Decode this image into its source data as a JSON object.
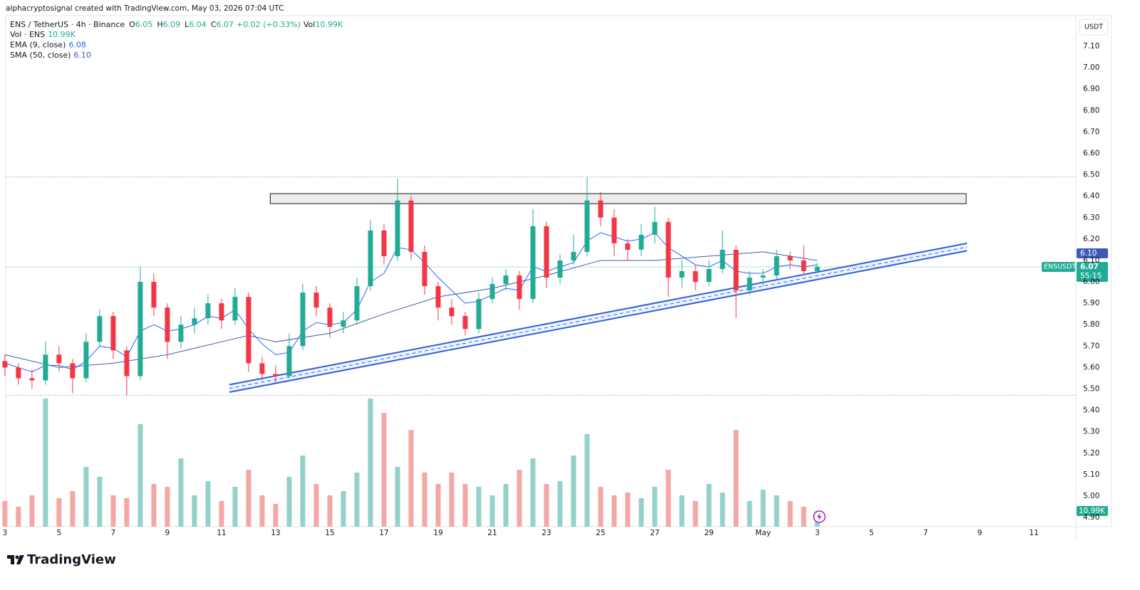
{
  "attribution": "alphacryptosignal created with TradingView.com, May 03, 2026 07:04 UTC",
  "brand": "TradingView",
  "chart_data": {
    "type": "candlestick",
    "title": "ENS / TetherUS · 4h · Binance",
    "status": [
      {
        "label": "O",
        "value": "6.05"
      },
      {
        "label": "H",
        "value": "6.09"
      },
      {
        "label": "L",
        "value": "6.04"
      },
      {
        "label": "C",
        "value": "6.07"
      }
    ],
    "change": "+0.02 (+0.33%)",
    "vol_status": {
      "label": "Vol",
      "value": "10.99K"
    },
    "indicators": [
      {
        "name": "Vol · ENS",
        "value_label": "10.99K"
      },
      {
        "name": "EMA (9, close)",
        "value_label": "6.08"
      },
      {
        "name": "SMA (50, close)",
        "value_label": "6.10"
      }
    ],
    "symbol": "ENSUSDT",
    "countdown": "55:15",
    "currency": "USDT",
    "up_color": "#22ab94",
    "down_color": "#f23645",
    "up_volume_color": "#93d2cb",
    "down_volume_color": "#f5a7a6",
    "x": [
      3,
      3.5,
      4,
      4.5,
      5,
      5.5,
      6,
      6.5,
      7,
      7.5,
      8,
      8.5,
      9,
      9.5,
      10,
      10.5,
      11,
      11.5,
      12,
      12.5,
      13,
      13.5,
      14,
      14.5,
      15,
      15.5,
      16,
      16.5,
      17,
      17.5,
      18,
      18.5,
      19,
      19.5,
      20,
      20.5,
      21,
      21.5,
      22,
      22.5,
      23,
      23.5,
      24,
      24.5,
      25,
      25.5,
      26,
      26.5,
      27,
      27.5,
      28,
      28.5,
      29,
      29.5,
      30,
      30.5,
      31,
      31.5,
      32,
      32.5,
      33
    ],
    "open": [
      5.63,
      5.6,
      5.55,
      5.54,
      5.66,
      5.62,
      5.55,
      5.72,
      5.84,
      5.68,
      5.56,
      6.0,
      5.88,
      5.72,
      5.8,
      5.83,
      5.9,
      5.82,
      5.93,
      5.62,
      5.57,
      5.56,
      5.7,
      5.95,
      5.88,
      5.79,
      5.82,
      5.98,
      6.24,
      6.12,
      6.38,
      6.14,
      5.98,
      5.88,
      5.84,
      5.78,
      5.92,
      5.99,
      6.03,
      5.92,
      6.26,
      6.02,
      6.1,
      6.14,
      6.38,
      6.3,
      6.18,
      6.15,
      6.22,
      6.28,
      6.02,
      6.05,
      6.0,
      6.06,
      6.15,
      5.96,
      6.02,
      6.03,
      6.12,
      6.1,
      6.05
    ],
    "high": [
      5.66,
      5.62,
      5.59,
      5.72,
      5.7,
      5.64,
      5.76,
      5.87,
      5.86,
      5.7,
      6.07,
      6.04,
      5.9,
      5.84,
      5.88,
      5.94,
      5.92,
      5.97,
      5.95,
      5.65,
      5.61,
      5.76,
      5.99,
      5.98,
      5.9,
      5.86,
      6.02,
      6.29,
      6.27,
      6.48,
      6.4,
      6.17,
      6.0,
      5.92,
      5.86,
      5.95,
      6.02,
      6.06,
      6.05,
      6.34,
      6.28,
      6.13,
      6.22,
      6.49,
      6.42,
      6.34,
      6.2,
      6.27,
      6.35,
      6.3,
      6.1,
      6.08,
      6.1,
      6.24,
      6.17,
      6.05,
      6.06,
      6.15,
      6.14,
      6.17,
      6.09
    ],
    "low": [
      5.56,
      5.52,
      5.5,
      5.52,
      5.58,
      5.48,
      5.53,
      5.7,
      5.64,
      5.47,
      5.54,
      5.84,
      5.64,
      5.69,
      5.76,
      5.8,
      5.78,
      5.8,
      5.58,
      5.54,
      5.53,
      5.55,
      5.68,
      5.84,
      5.74,
      5.76,
      5.8,
      5.96,
      6.08,
      6.1,
      6.1,
      5.94,
      5.82,
      5.8,
      5.75,
      5.76,
      5.9,
      5.96,
      5.87,
      5.9,
      5.97,
      5.99,
      6.08,
      6.12,
      6.26,
      6.12,
      6.1,
      6.12,
      6.18,
      5.93,
      5.97,
      5.96,
      5.98,
      6.04,
      5.83,
      5.94,
      5.98,
      6.01,
      6.06,
      6.03,
      6.04
    ],
    "close": [
      5.6,
      5.55,
      5.54,
      5.66,
      5.62,
      5.55,
      5.72,
      5.84,
      5.68,
      5.56,
      6.0,
      5.88,
      5.72,
      5.8,
      5.83,
      5.9,
      5.82,
      5.93,
      5.62,
      5.57,
      5.56,
      5.7,
      5.95,
      5.88,
      5.79,
      5.82,
      5.98,
      6.24,
      6.12,
      6.38,
      6.14,
      5.98,
      5.88,
      5.84,
      5.78,
      5.92,
      5.99,
      6.03,
      5.92,
      6.26,
      6.02,
      6.1,
      6.14,
      6.38,
      6.3,
      6.18,
      6.15,
      6.22,
      6.28,
      6.02,
      6.05,
      6.0,
      6.06,
      6.15,
      5.96,
      6.02,
      6.03,
      6.12,
      6.1,
      6.05,
      6.07
    ],
    "volume": [
      18,
      14,
      22,
      90,
      20,
      25,
      42,
      35,
      22,
      20,
      72,
      30,
      28,
      48,
      22,
      32,
      18,
      28,
      40,
      22,
      16,
      35,
      50,
      30,
      22,
      25,
      38,
      90,
      80,
      42,
      68,
      38,
      30,
      38,
      30,
      28,
      22,
      30,
      40,
      48,
      30,
      32,
      50,
      65,
      28,
      22,
      24,
      20,
      28,
      40,
      22,
      18,
      30,
      24,
      68,
      18,
      26,
      22,
      18,
      14,
      10.99
    ],
    "volume_ylim": [
      0,
      110
    ],
    "ema": {
      "color": "#2962ff",
      "values": [
        5.62,
        5.6,
        5.58,
        5.61,
        5.61,
        5.59,
        5.63,
        5.7,
        5.69,
        5.65,
        5.77,
        5.8,
        5.77,
        5.78,
        5.8,
        5.84,
        5.83,
        5.87,
        5.78,
        5.71,
        5.66,
        5.67,
        5.77,
        5.81,
        5.8,
        5.81,
        5.87,
        6.0,
        6.04,
        6.16,
        6.15,
        6.09,
        6.02,
        5.96,
        5.9,
        5.91,
        5.94,
        5.97,
        5.96,
        6.07,
        6.05,
        6.07,
        6.09,
        6.19,
        6.23,
        6.21,
        6.19,
        6.2,
        6.23,
        6.16,
        6.12,
        6.08,
        6.07,
        6.1,
        6.05,
        6.04,
        6.04,
        6.07,
        6.08,
        6.07,
        6.08
      ]
    },
    "sma": {
      "color": "#3b5bb5",
      "x": [
        3,
        5,
        7,
        9,
        11,
        12,
        13,
        15,
        17,
        19,
        21,
        23,
        25,
        27,
        29,
        31,
        33
      ],
      "values": [
        5.66,
        5.6,
        5.62,
        5.66,
        5.72,
        5.75,
        5.72,
        5.76,
        5.85,
        5.93,
        5.97,
        6.03,
        6.1,
        6.1,
        6.12,
        6.14,
        6.1
      ]
    },
    "zone": {
      "x": [
        12.8,
        38.5
      ],
      "y": [
        6.365,
        6.412
      ]
    },
    "channel": {
      "color": "#2f5fd8",
      "x": [
        11.29,
        38.53
      ],
      "upper": [
        5.52,
        6.18
      ],
      "lower": [
        5.485,
        6.145
      ]
    },
    "xlim": [
      3.03,
      42.55
    ],
    "xticks": [
      3,
      5,
      7,
      9,
      11,
      13,
      15,
      17,
      19,
      21,
      23,
      25,
      27,
      29,
      {
        "value": 31,
        "label": "May"
      },
      {
        "value": 33,
        "label": "3"
      },
      {
        "value": 35,
        "label": "5"
      },
      {
        "value": 37,
        "label": "7"
      },
      {
        "value": 39,
        "label": "9"
      },
      {
        "value": 41,
        "label": "11"
      }
    ],
    "ylim": [
      4.857,
      7.243
    ],
    "yticks": [
      {
        "value": 4.9,
        "label": "4.90"
      },
      {
        "value": 5.0,
        "label": "5.00"
      },
      {
        "value": 5.1,
        "label": "5.10"
      },
      {
        "value": 5.2,
        "label": "5.20"
      },
      {
        "value": 5.3,
        "label": "5.30"
      },
      {
        "value": 5.4,
        "label": "5.40"
      },
      {
        "value": 5.5,
        "label": "5.50"
      },
      {
        "value": 5.6,
        "label": "5.60"
      },
      {
        "value": 5.7,
        "label": "5.70"
      },
      {
        "value": 5.8,
        "label": "5.80"
      },
      {
        "value": 5.9,
        "label": "5.90"
      },
      {
        "value": 6.0,
        "label": "6.00"
      },
      {
        "value": 6.1,
        "label": "6.10"
      },
      {
        "value": 6.2,
        "label": "6.20"
      },
      {
        "value": 6.3,
        "label": "6.30"
      },
      {
        "value": 6.4,
        "label": "6.40"
      },
      {
        "value": 6.5,
        "label": "6.50"
      },
      {
        "value": 6.6,
        "label": "6.60"
      },
      {
        "value": 6.7,
        "label": "6.70"
      },
      {
        "value": 6.8,
        "label": "6.80"
      },
      {
        "value": 6.9,
        "label": "6.90"
      },
      {
        "value": 7.0,
        "label": "7.00"
      },
      {
        "value": 7.1,
        "label": "7.10"
      }
    ]
  }
}
